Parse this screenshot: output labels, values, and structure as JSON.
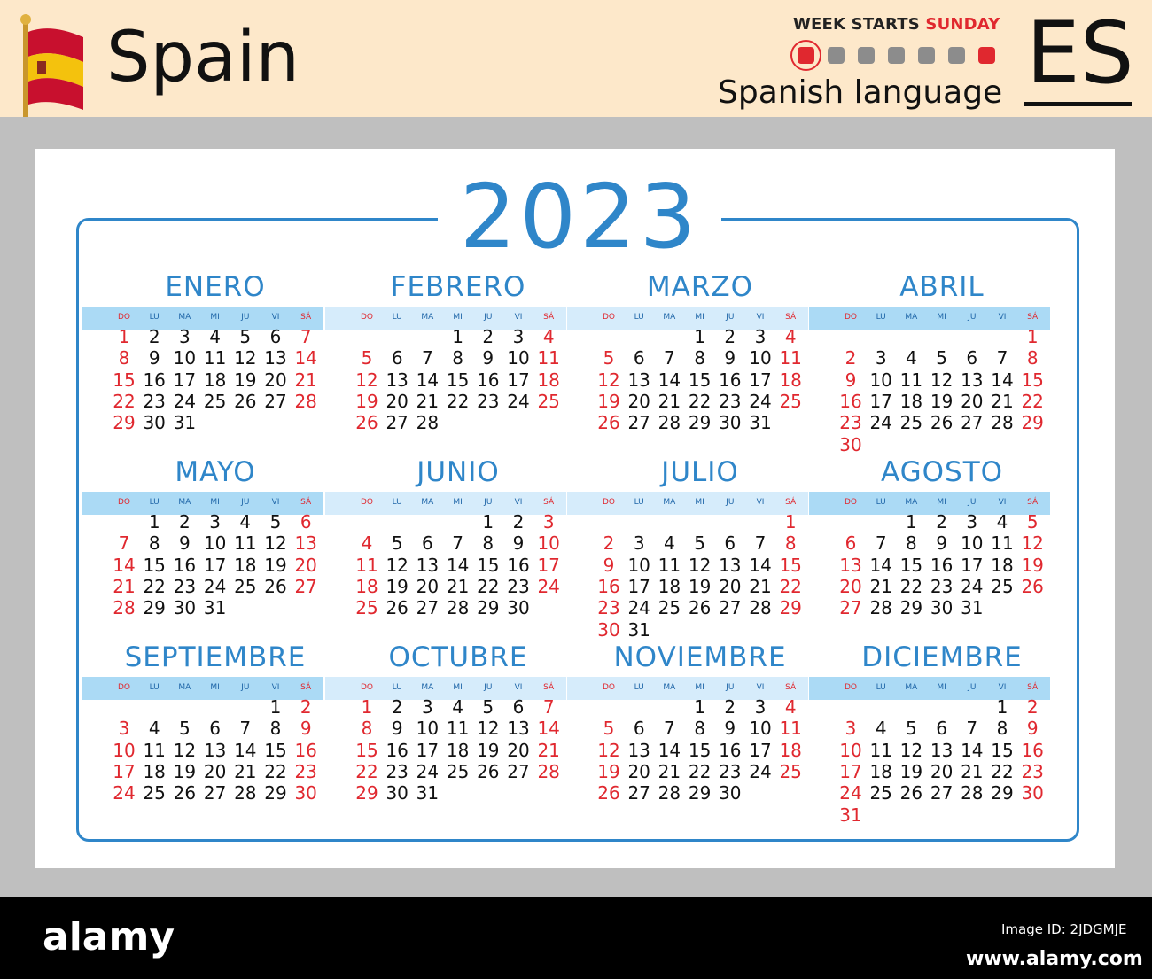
{
  "header": {
    "country": "Spain",
    "week_starts_label": "WEEK STARTS",
    "week_starts_day": "SUNDAY",
    "language": "Spanish language",
    "code": "ES"
  },
  "calendar": {
    "year": "2023",
    "day_headers": [
      "DO",
      "LU",
      "MA",
      "MI",
      "JU",
      "VI",
      "SÁ"
    ],
    "months": [
      {
        "name": "ENERO",
        "first_weekday": 0,
        "days": 31
      },
      {
        "name": "FEBRERO",
        "first_weekday": 3,
        "days": 28
      },
      {
        "name": "MARZO",
        "first_weekday": 3,
        "days": 31
      },
      {
        "name": "ABRIL",
        "first_weekday": 6,
        "days": 30
      },
      {
        "name": "MAYO",
        "first_weekday": 1,
        "days": 31
      },
      {
        "name": "JUNIO",
        "first_weekday": 4,
        "days": 30
      },
      {
        "name": "JULIO",
        "first_weekday": 6,
        "days": 31
      },
      {
        "name": "AGOSTO",
        "first_weekday": 2,
        "days": 31
      },
      {
        "name": "SEPTIEMBRE",
        "first_weekday": 5,
        "days": 30
      },
      {
        "name": "OCTUBRE",
        "first_weekday": 0,
        "days": 31
      },
      {
        "name": "NOVIEMBRE",
        "first_weekday": 3,
        "days": 30
      },
      {
        "name": "DICIEMBRE",
        "first_weekday": 5,
        "days": 31
      }
    ]
  },
  "colors": {
    "accent_blue": "#2f86c9",
    "weekend_red": "#e0282f",
    "header_bg": "#fde8ca"
  },
  "footer": {
    "brand": "alamy",
    "image_id": "Image ID: 2JDGMJE",
    "site": "www.alamy.com"
  }
}
